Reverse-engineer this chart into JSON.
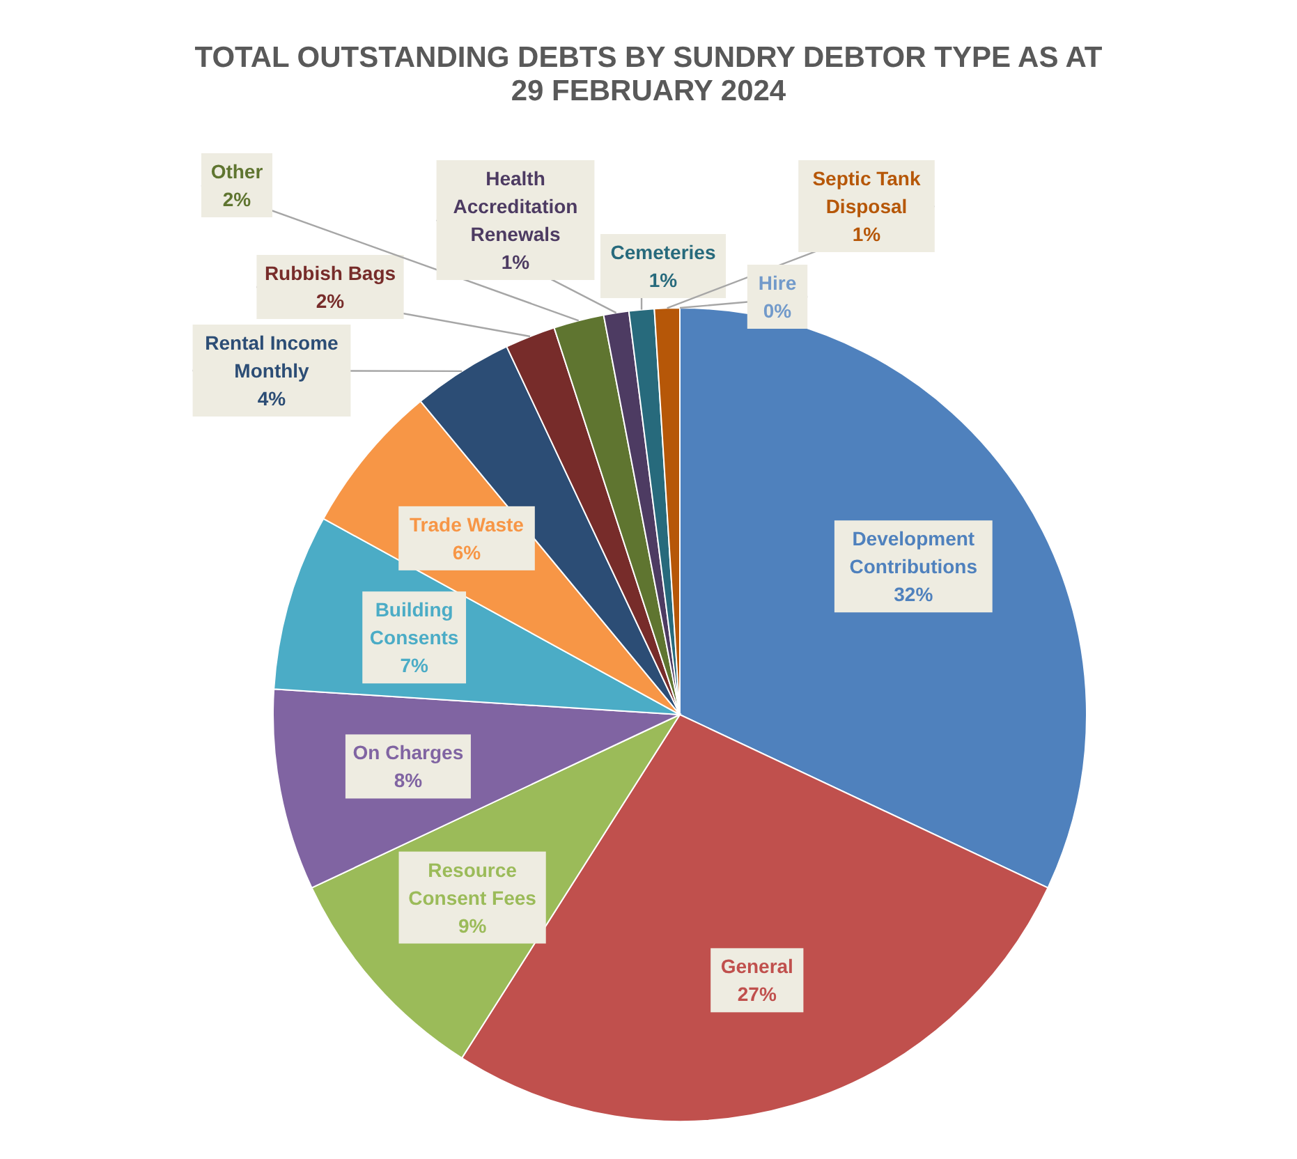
{
  "chart_data": {
    "type": "pie",
    "title": "TOTAL OUTSTANDING DEBTS BY SUNDRY DEBTOR TYPE AS AT 29 FEBRUARY 2024",
    "categories": [
      "Development Contributions",
      "General",
      "Resource Consent Fees",
      "On Charges",
      "Building Consents",
      "Trade Waste",
      "Rental Income Monthly",
      "Rubbish Bags",
      "Other",
      "Health Accreditation Renewals",
      "Cemeteries",
      "Septic Tank Disposal",
      "Hire"
    ],
    "values": [
      32,
      27,
      9,
      8,
      7,
      6,
      4,
      2,
      2,
      1,
      1,
      1,
      0
    ],
    "value_labels": [
      "32%",
      "27%",
      "9%",
      "8%",
      "7%",
      "6%",
      "4%",
      "2%",
      "2%",
      "1%",
      "1%",
      "1%",
      "0%"
    ],
    "colors": [
      "#4f81bd",
      "#c0504d",
      "#9bbb59",
      "#8064a2",
      "#4bacc6",
      "#f79646",
      "#2c4d75",
      "#772c2a",
      "#5f7530",
      "#4d3b62",
      "#276a7c",
      "#b65708",
      "#729aca"
    ]
  }
}
